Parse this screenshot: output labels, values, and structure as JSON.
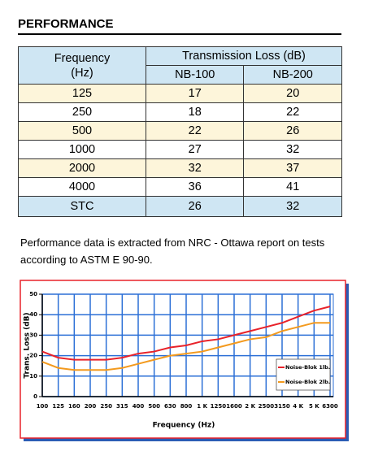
{
  "header": {
    "title": "PERFORMANCE"
  },
  "table": {
    "col_header": "Frequency (Hz)",
    "group_header": "Transmission Loss (dB)",
    "sub_headers": [
      "NB-100",
      "NB-200"
    ],
    "rows": [
      [
        "125",
        17,
        20
      ],
      [
        "250",
        18,
        22
      ],
      [
        "500",
        22,
        26
      ],
      [
        "1000",
        27,
        32
      ],
      [
        "2000",
        32,
        37
      ],
      [
        "4000",
        36,
        41
      ]
    ],
    "footer": [
      "STC",
      26,
      32
    ]
  },
  "note": "Performance data is extracted from NRC - Ottawa report on tests according to ASTM E 90-90.",
  "chart_data": {
    "type": "line",
    "x_label": "Frequency (Hz)",
    "y_label": "Trans. Loss (dB)",
    "categories": [
      "100",
      "125",
      "160",
      "200",
      "250",
      "315",
      "400",
      "500",
      "630",
      "800",
      "1 K",
      "1250",
      "1600",
      "2 K",
      "2500",
      "3150",
      "4 K",
      "5 K",
      "6300"
    ],
    "series": [
      {
        "name": "Noise-Blok 1lb.",
        "color": "#e8222a",
        "values": [
          22,
          19,
          18,
          18,
          18,
          19,
          21,
          22,
          24,
          25,
          27,
          28,
          30,
          32,
          34,
          36,
          39,
          42,
          44
        ]
      },
      {
        "name": "Noise-Blok 2lb.",
        "color": "#f39a1e",
        "values": [
          17,
          14,
          13,
          13,
          13,
          14,
          16,
          18,
          20,
          21,
          22,
          24,
          26,
          28,
          29,
          32,
          34,
          36,
          36
        ]
      }
    ],
    "ylim": [
      0,
      50
    ],
    "yticks": [
      0,
      10,
      20,
      30,
      40,
      50
    ],
    "grid": true,
    "legend": "lower-right"
  }
}
